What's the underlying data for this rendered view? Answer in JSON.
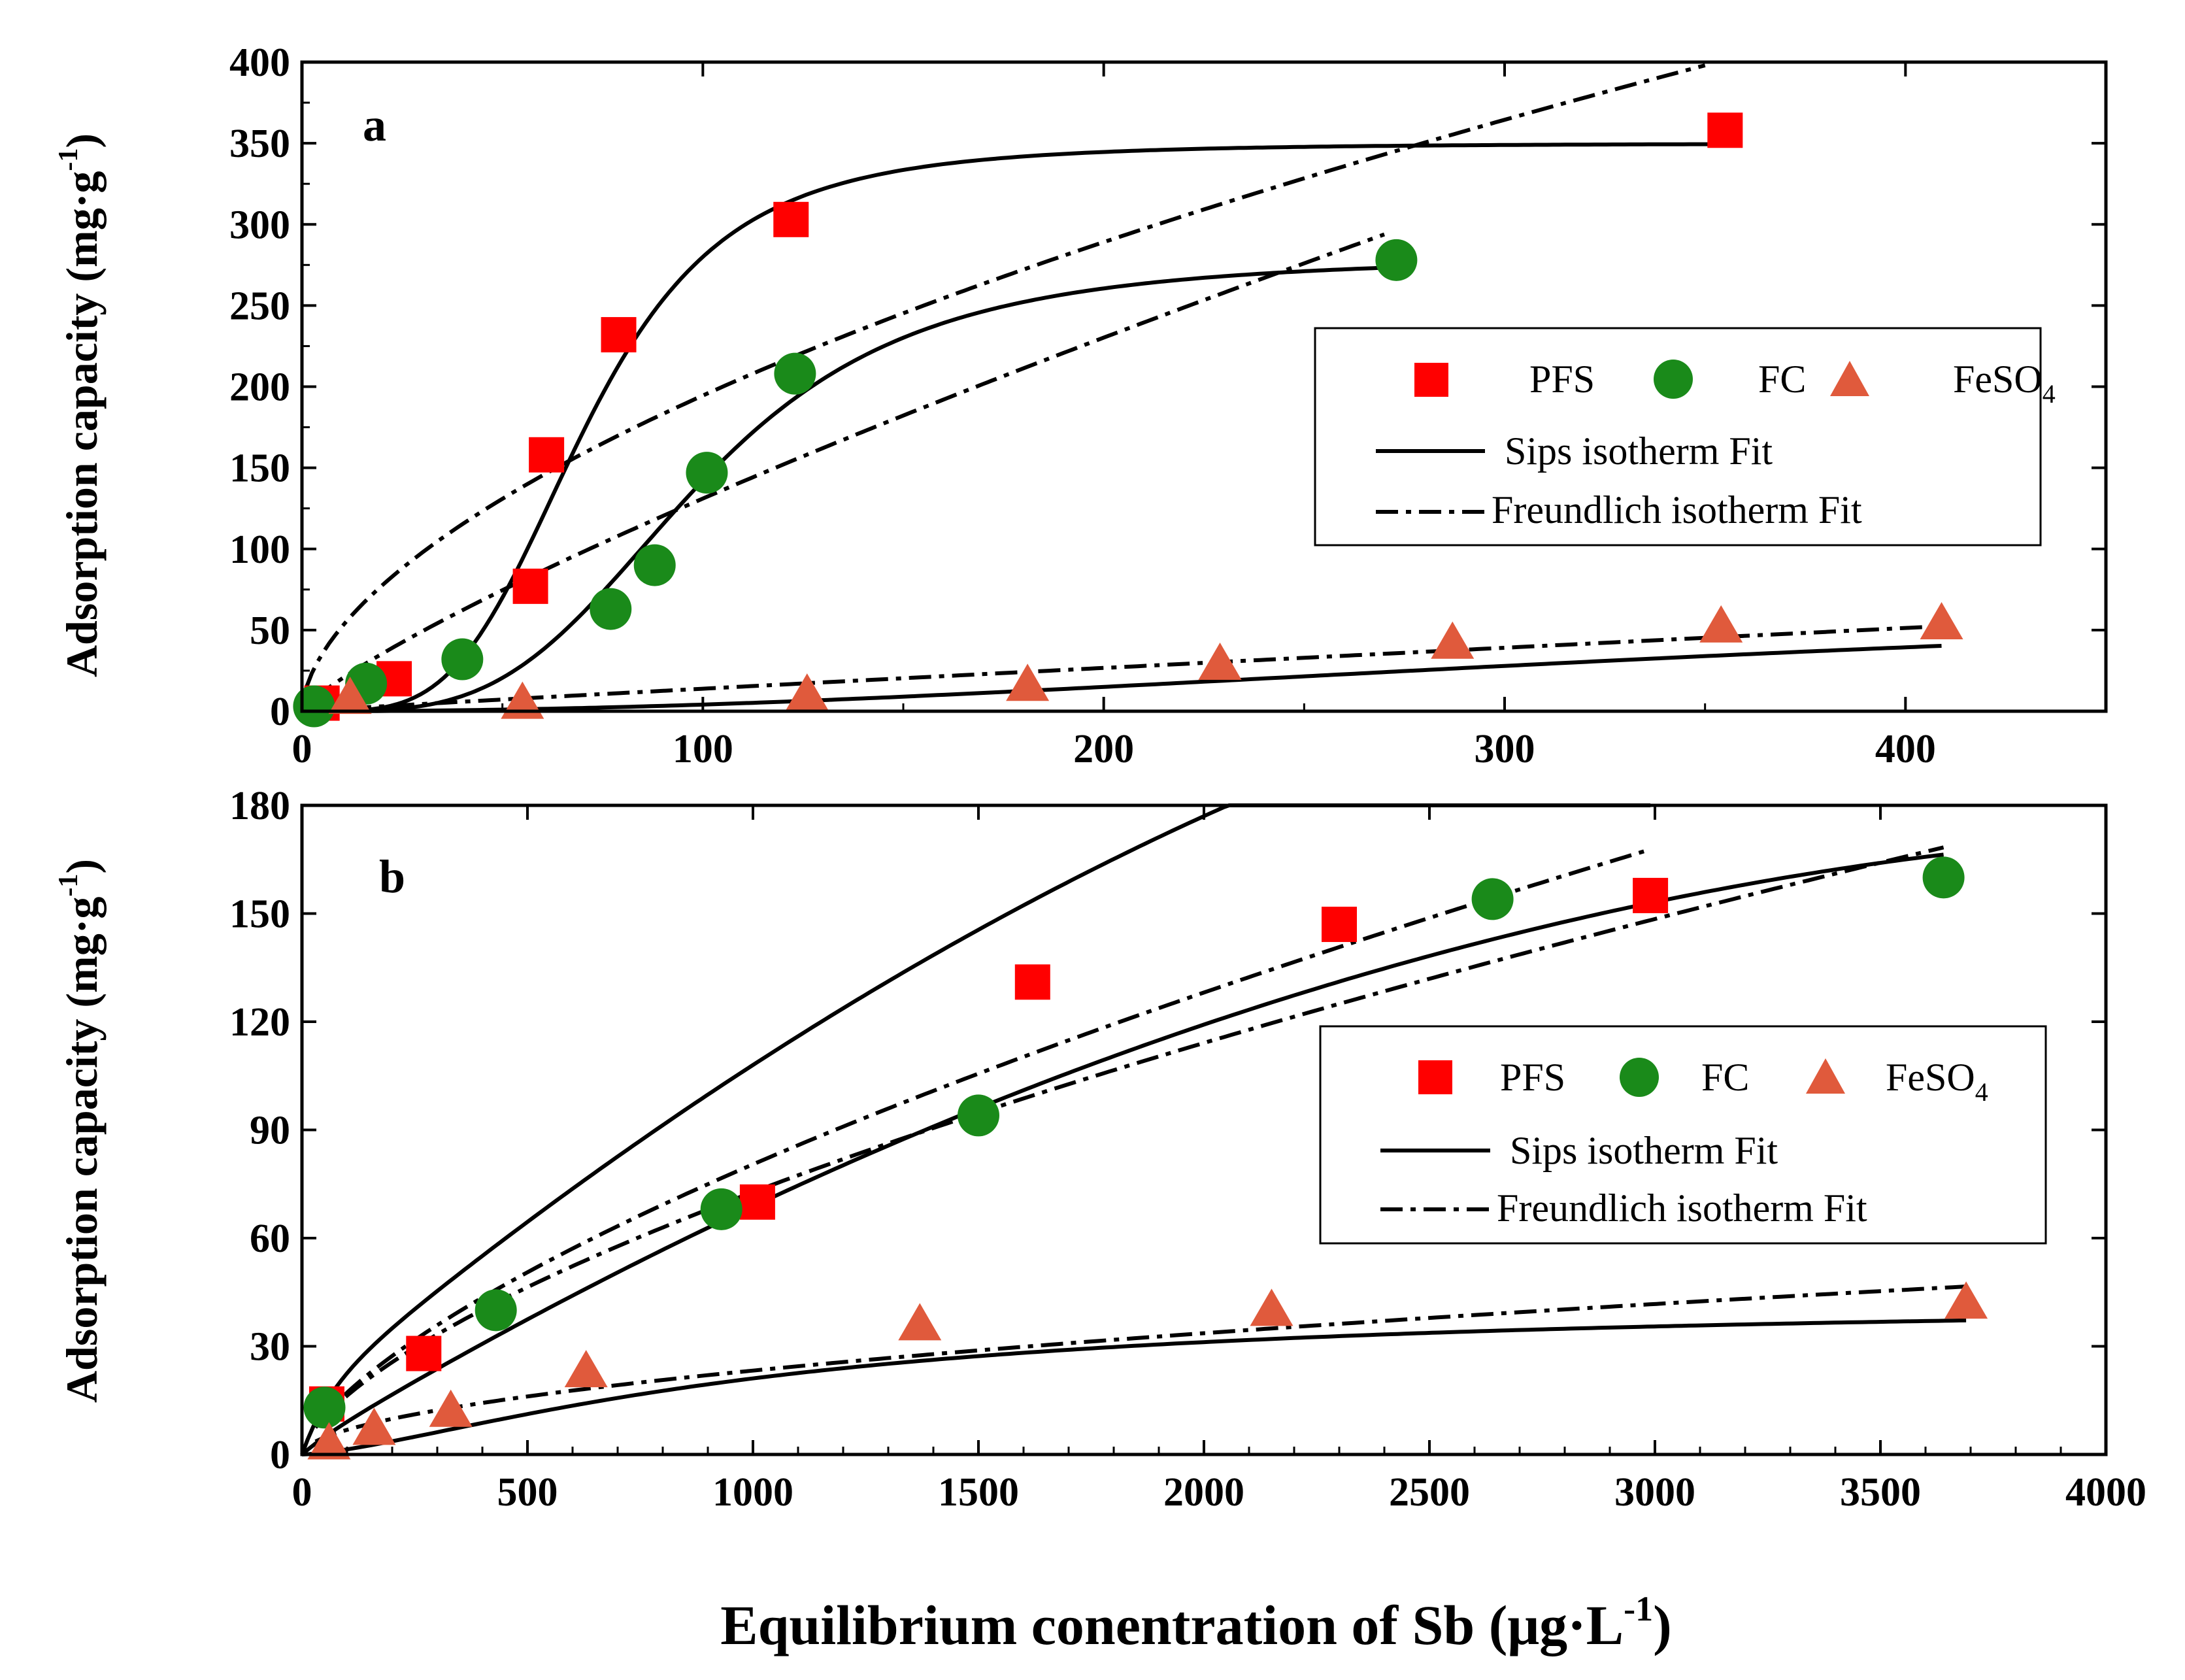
{
  "colors": {
    "PFS": "#ff0000",
    "FC": "#1a8a1a",
    "FeSO4": "#e05a3c",
    "line": "#000000"
  },
  "figure": {
    "xlabel_main": "Equilibrium conentration of Sb (",
    "xlabel_unit": "μg·L",
    "xlabel_exp": "-1",
    "xlabel_close": ")"
  },
  "chart_data": [
    {
      "type": "scatter",
      "panel_label": "a",
      "ylabel": "Adsorption capacity (mg·g",
      "ylabel_exp": "-1",
      "ylabel_close": ")",
      "xlim": [
        0,
        450
      ],
      "ylim": [
        0,
        400
      ],
      "xticks": [
        0,
        100,
        200,
        300,
        400
      ],
      "yticks": [
        0,
        50,
        100,
        150,
        200,
        250,
        300,
        350,
        400
      ],
      "legend": {
        "position": "center-right",
        "labels": [
          "PFS",
          "FC",
          "FeSO",
          "Sips isotherm Fit",
          "Freundlich isotherm Fit"
        ],
        "sub": "4"
      },
      "series": [
        {
          "name": "PFS",
          "marker": "square",
          "x": [
            5,
            23,
            57,
            61,
            79,
            122,
            355
          ],
          "y": [
            5,
            20,
            77,
            158,
            232,
            303,
            358
          ]
        },
        {
          "name": "FC",
          "marker": "circle",
          "x": [
            3,
            16,
            40,
            77,
            88,
            101,
            123,
            273
          ],
          "y": [
            3,
            17,
            32,
            63,
            90,
            147,
            208,
            278
          ]
        },
        {
          "name": "FeSO4",
          "marker": "triangle",
          "x": [
            12,
            55,
            126,
            181,
            229,
            287,
            354,
            409
          ],
          "y": [
            8,
            5,
            10,
            16,
            29,
            42,
            52,
            54
          ]
        }
      ],
      "fits": [
        {
          "name": "PFS Sips",
          "style": "solid",
          "model": "sips",
          "qm": 350,
          "K": 4e-08,
          "n": 4,
          "xmin": 0,
          "xmax": 355
        },
        {
          "name": "FC Sips",
          "style": "solid",
          "model": "sips",
          "qm": 280,
          "K": 4.1e-08,
          "n": 3.7,
          "xmin": 0,
          "xmax": 273
        },
        {
          "name": "FeSO4 Sips",
          "style": "solid",
          "model": "sips",
          "qm": 78,
          "K": 3.5e-06,
          "n": 2.1,
          "xmin": 0,
          "xmax": 409
        },
        {
          "name": "PFS Freundlich",
          "style": "dashdot",
          "model": "freundlich",
          "K": 14,
          "n": 1.75,
          "xmin": 1,
          "xmax": 350
        },
        {
          "name": "FC Freundlich",
          "style": "dashdot",
          "model": "freundlich",
          "K": 3.1,
          "n": 1.23,
          "xmin": 3,
          "xmax": 270
        },
        {
          "name": "FeSO4 Freundlich",
          "style": "dashdot",
          "model": "freundlich",
          "K": 0.18,
          "n": 1.06,
          "xmin": 1,
          "xmax": 409
        }
      ]
    },
    {
      "type": "scatter",
      "panel_label": "b",
      "ylabel": "Adsorption capacity (mg·g",
      "ylabel_exp": "-1",
      "ylabel_close": ")",
      "xlim": [
        0,
        4000
      ],
      "ylim": [
        0,
        180
      ],
      "xticks": [
        0,
        500,
        1000,
        1500,
        2000,
        2500,
        3000,
        3500,
        4000
      ],
      "yticks": [
        0,
        30,
        60,
        90,
        120,
        150,
        180
      ],
      "legend": {
        "position": "center-right",
        "labels": [
          "PFS",
          "FC",
          "FeSO",
          "Sips isotherm Fit",
          "Freundlich isotherm Fit"
        ],
        "sub": "4"
      },
      "series": [
        {
          "name": "PFS",
          "marker": "square",
          "x": [
            55,
            270,
            1010,
            1620,
            2300,
            2990
          ],
          "y": [
            14,
            28,
            70,
            131,
            147,
            155
          ]
        },
        {
          "name": "FC",
          "marker": "circle",
          "x": [
            50,
            430,
            930,
            1500,
            2640,
            3640
          ],
          "y": [
            13,
            40,
            68,
            94,
            154,
            160
          ]
        },
        {
          "name": "FeSO4",
          "marker": "triangle",
          "x": [
            60,
            160,
            330,
            630,
            1370,
            2150,
            3690
          ],
          "y": [
            3,
            7,
            12,
            23,
            36,
            40,
            42
          ]
        }
      ],
      "fits": [
        {
          "name": "PFS Sips",
          "style": "solid",
          "model": "poly2",
          "p": [
            15,
            0.105,
            -1.2e-05
          ],
          "xmin": 0,
          "xmax": 2990
        },
        {
          "name": "FC Sips",
          "style": "solid",
          "model": "poly2",
          "p": [
            2,
            0.075,
            -8.2e-06
          ],
          "xmin": 0,
          "xmax": 3640
        },
        {
          "name": "FeSO4 Sips",
          "style": "solid",
          "model": "sips",
          "qm": 43,
          "K": 4.3e-05,
          "n": 1.45,
          "xmin": 0,
          "xmax": 3690
        },
        {
          "name": "PFS Freundlich",
          "style": "dashdot",
          "model": "freundlich",
          "K": 0.78,
          "n": 1.49,
          "xmin": 30,
          "xmax": 2980
        },
        {
          "name": "FC Freundlich",
          "style": "dashdot",
          "model": "freundlich",
          "K": 0.82,
          "n": 1.54,
          "xmin": 30,
          "xmax": 3640
        },
        {
          "name": "FeSO4 Freundlich",
          "style": "dashdot",
          "model": "freundlich",
          "K": 0.59,
          "n": 1.88,
          "xmin": 30,
          "xmax": 3690
        }
      ]
    }
  ]
}
